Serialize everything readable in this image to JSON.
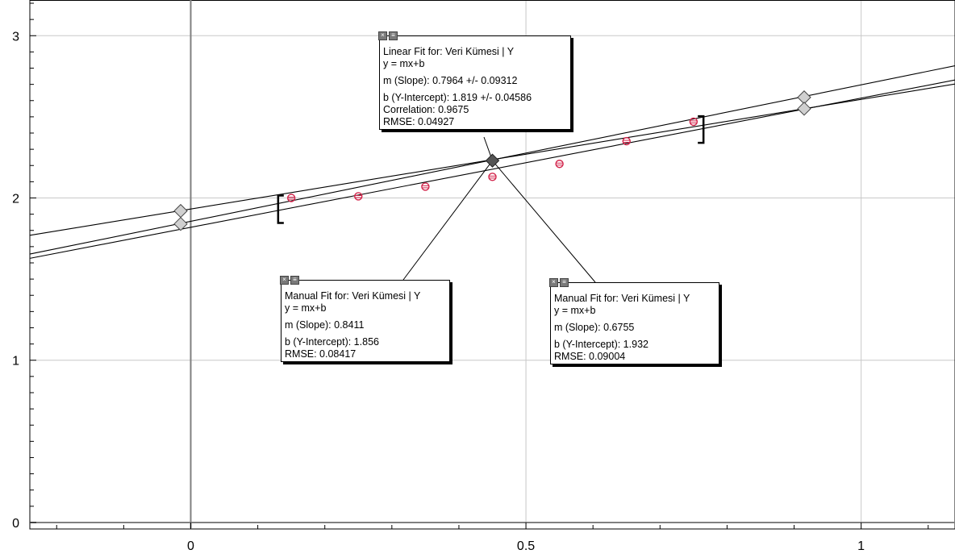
{
  "chart_data": {
    "type": "scatter",
    "x_ticks": [
      "0",
      "0.5",
      "1"
    ],
    "y_ticks": [
      "0",
      "1",
      "2",
      "3"
    ],
    "xlim": [
      -0.24,
      1.14
    ],
    "ylim": [
      -0.04,
      3.22
    ],
    "points": [
      {
        "x": 0.15,
        "y": 2.0
      },
      {
        "x": 0.25,
        "y": 2.01
      },
      {
        "x": 0.35,
        "y": 2.07
      },
      {
        "x": 0.45,
        "y": 2.13
      },
      {
        "x": 0.55,
        "y": 2.21
      },
      {
        "x": 0.65,
        "y": 2.35
      },
      {
        "x": 0.75,
        "y": 2.47
      }
    ],
    "fit_lines": [
      {
        "m": 0.7964,
        "b": 1.819
      },
      {
        "m": 0.8411,
        "b": 1.856
      },
      {
        "m": 0.6755,
        "b": 1.932
      }
    ],
    "fit_range": [
      0.14,
      0.76
    ],
    "pivot_point": {
      "x": 0.45,
      "y": 2.23
    },
    "handles": [
      {
        "x": -0.015,
        "y": 1.92
      },
      {
        "x": -0.015,
        "y": 1.84
      },
      {
        "x": 0.915,
        "y": 2.62
      },
      {
        "x": 0.915,
        "y": 2.55
      }
    ]
  },
  "boxes": {
    "linear": {
      "title": "Linear Fit for: Veri Kümesi | Y",
      "eq": "y = mx+b",
      "slope": "m (Slope): 0.7964 +/- 0.09312",
      "intercept": "b (Y-Intercept): 1.819 +/- 0.04586",
      "correlation": "Correlation: 0.9675",
      "rmse": "RMSE: 0.04927"
    },
    "manual1": {
      "title": "Manual Fit for: Veri Kümesi | Y",
      "eq": "y = mx+b",
      "slope": "m (Slope): 0.8411",
      "intercept": "b (Y-Intercept): 1.856",
      "rmse": "RMSE: 0.08417"
    },
    "manual2": {
      "title": "Manual Fit for: Veri Kümesi | Y",
      "eq": "y = mx+b",
      "slope": "m (Slope): 0.6755",
      "intercept": "b (Y-Intercept): 1.932",
      "rmse": "RMSE: 0.09004"
    },
    "close_glyph": "×",
    "menu_glyph": "≡"
  },
  "colors": {
    "grid": "#c8c8c8",
    "axis": "#808080",
    "point": "#d2234a",
    "line": "#000000",
    "handle_fill": "#d0d0d0",
    "pivot_fill": "#555555"
  }
}
